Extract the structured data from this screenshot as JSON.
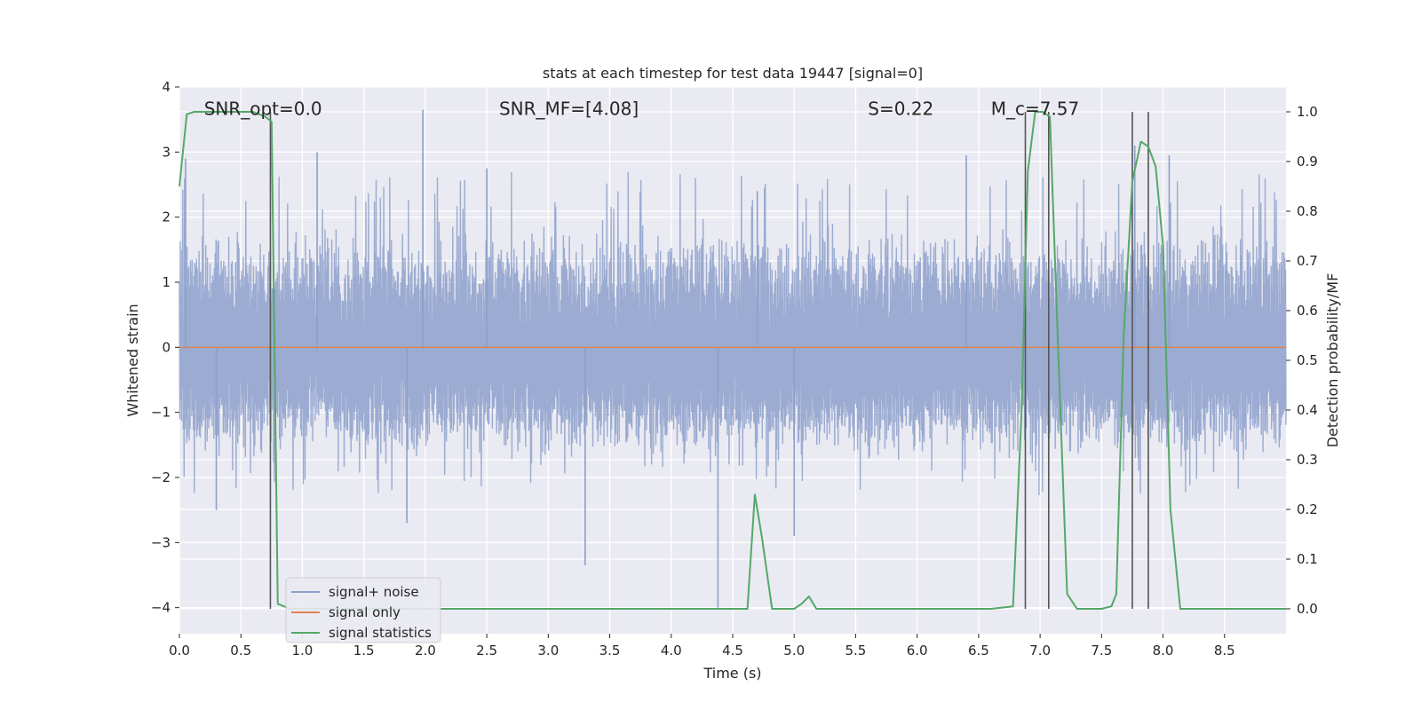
{
  "chart_data": {
    "type": "line",
    "title": "stats at each timestep for test data 19447 [signal=0]",
    "xlabel": "Time (s)",
    "ylabel": "Whitened strain",
    "y2label": "Detection probability/MF",
    "xlim": [
      0,
      9.0
    ],
    "ylim": [
      -4.4,
      4.0
    ],
    "y2lim": [
      -0.05,
      1.05
    ],
    "x_ticks": [
      0.0,
      0.5,
      1.0,
      1.5,
      2.0,
      2.5,
      3.0,
      3.5,
      4.0,
      4.5,
      5.0,
      5.5,
      6.0,
      6.5,
      7.0,
      7.5,
      8.0,
      8.5
    ],
    "y_ticks": [
      -4,
      -3,
      -2,
      -1,
      0,
      1,
      2,
      3,
      4
    ],
    "y2_ticks": [
      0.0,
      0.1,
      0.2,
      0.3,
      0.4,
      0.5,
      0.6,
      0.7,
      0.8,
      0.9,
      1.0
    ],
    "grid": true,
    "legend_position": "bottom-left",
    "annotations": [
      {
        "text": "SNR_opt=0.0",
        "x": 0.2,
        "y": 3.6
      },
      {
        "text": "SNR_MF=[4.08]",
        "x": 2.6,
        "y": 3.6
      },
      {
        "text": "S=0.22",
        "x": 5.6,
        "y": 3.6
      },
      {
        "text": "M_c=7.57",
        "x": 6.6,
        "y": 3.6
      }
    ],
    "series": [
      {
        "name": "signal+ noise",
        "axis": "left",
        "kind": "noise",
        "color": "#8da0cb",
        "noise_band": [
          -1.7,
          2.1
        ],
        "spikes": [
          [
            0.05,
            2.9
          ],
          [
            1.12,
            3.0
          ],
          [
            1.98,
            3.65
          ],
          [
            2.5,
            2.75
          ],
          [
            3.3,
            -3.35
          ],
          [
            4.38,
            -4.0
          ],
          [
            4.7,
            2.4
          ],
          [
            5.0,
            -2.9
          ],
          [
            6.4,
            2.95
          ],
          [
            7.77,
            3.1
          ],
          [
            8.05,
            2.95
          ],
          [
            1.85,
            -2.7
          ],
          [
            0.3,
            -2.5
          ]
        ]
      },
      {
        "name": "signal only",
        "axis": "left",
        "color": "#dd8452",
        "x": [
          0.0,
          9.0
        ],
        "y": [
          0.0,
          0.0
        ]
      },
      {
        "name": "signal statistics",
        "axis": "right",
        "color": "#55a868",
        "x": [
          0.0,
          0.06,
          0.12,
          0.3,
          0.6,
          0.7,
          0.75,
          0.8,
          0.9,
          4.0,
          4.62,
          4.68,
          4.74,
          4.82,
          5.0,
          5.06,
          5.12,
          5.18,
          5.3,
          6.6,
          6.78,
          6.85,
          6.9,
          6.96,
          7.02,
          7.08,
          7.15,
          7.22,
          7.3,
          7.5,
          7.58,
          7.62,
          7.68,
          7.75,
          7.82,
          7.88,
          7.94,
          8.0,
          8.06,
          8.14,
          8.2,
          9.0
        ],
        "y": [
          0.85,
          0.995,
          1.0,
          1.0,
          1.0,
          0.99,
          0.98,
          0.01,
          0.0,
          0.0,
          0.0,
          0.23,
          0.14,
          0.0,
          0.0,
          0.01,
          0.025,
          0.0,
          0.0,
          0.0,
          0.005,
          0.4,
          0.88,
          1.0,
          1.0,
          0.99,
          0.5,
          0.03,
          0.0,
          0.0,
          0.005,
          0.03,
          0.55,
          0.86,
          0.94,
          0.93,
          0.89,
          0.73,
          0.2,
          0.0,
          0.0,
          0.0
        ]
      }
    ],
    "vlines": [
      0.74,
      6.88,
      7.07,
      7.75,
      7.88
    ],
    "vline_color": "#555555"
  }
}
